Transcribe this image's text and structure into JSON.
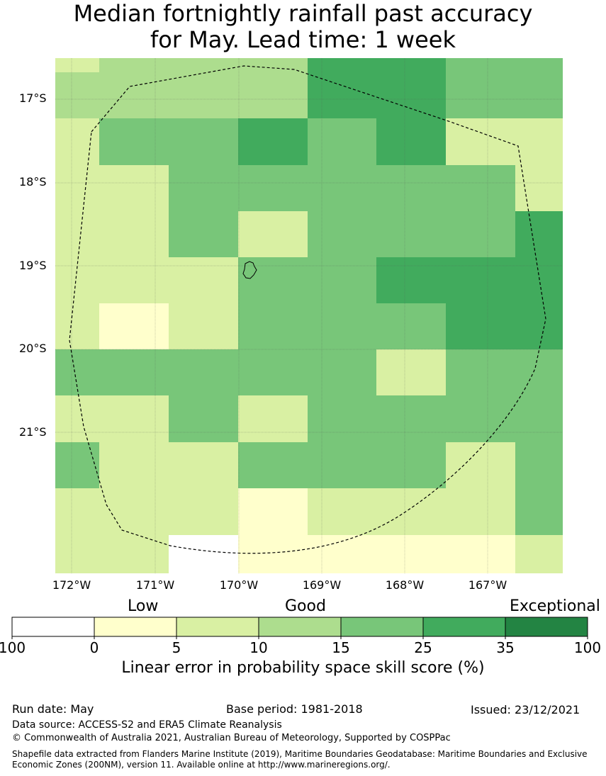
{
  "title": {
    "line1": "Median fortnightly rainfall past accuracy",
    "line2": "for May. Lead time: 1 week"
  },
  "map": {
    "lat_labels": [
      "17°S",
      "18°S",
      "19°S",
      "20°S",
      "21°S"
    ],
    "lon_labels": [
      "172°W",
      "171°W",
      "170°W",
      "169°W",
      "168°W",
      "167°W"
    ],
    "grid_rows": [
      [
        2,
        3,
        3,
        3,
        5,
        5,
        4,
        4
      ],
      [
        3,
        3,
        3,
        3,
        5,
        5,
        4,
        4
      ],
      [
        2,
        4,
        4,
        5,
        4,
        5,
        2,
        2
      ],
      [
        2,
        2,
        4,
        4,
        4,
        4,
        4,
        2
      ],
      [
        2,
        2,
        4,
        2,
        4,
        4,
        4,
        5
      ],
      [
        2,
        2,
        2,
        4,
        4,
        5,
        5,
        5
      ],
      [
        2,
        1,
        2,
        4,
        4,
        4,
        5,
        5
      ],
      [
        4,
        4,
        4,
        4,
        4,
        2,
        4,
        4
      ],
      [
        2,
        2,
        4,
        2,
        4,
        4,
        4,
        4
      ],
      [
        4,
        2,
        2,
        4,
        4,
        4,
        2,
        4
      ],
      [
        2,
        2,
        2,
        1,
        2,
        2,
        2,
        4
      ],
      [
        2,
        2,
        0,
        1,
        1,
        1,
        1,
        2
      ]
    ]
  },
  "legend": {
    "categories": [
      "Low",
      "Good",
      "Exceptional"
    ],
    "ticks": [
      "100",
      "0",
      "5",
      "10",
      "15",
      "25",
      "35",
      "100"
    ],
    "colors": [
      "#ffffff",
      "#ffffcc",
      "#d9f0a3",
      "#addd8e",
      "#78c679",
      "#41ab5d",
      "#238443"
    ],
    "axis_title": "Linear error in probability space skill score (%)"
  },
  "footer": {
    "run_date": "Run date: May",
    "base_period": "Base period: 1981-2018",
    "issued": "Issued: 23/12/2021",
    "data_source": "Data source: ACCESS-S2 and ERA5 Climate Reanalysis",
    "copyright": "© Commonwealth of Australia 2021, Australian Bureau of Meteorology, Supported by COSPPac",
    "shapefile": "Shapefile data extracted from Flanders Marine Institute (2019), Maritime Boundaries Geodatabase: Maritime Boundaries and Exclusive Economic Zones (200NM), version 11. Available online at http://www.marineregions.org/."
  }
}
